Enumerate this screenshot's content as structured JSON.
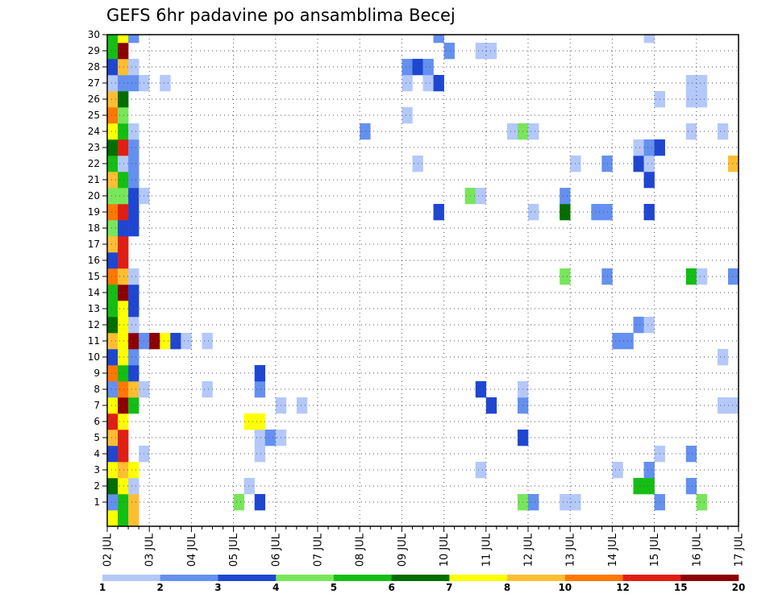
{
  "chart_data": {
    "type": "heatmap",
    "title": "GEFS 6hr padavine po ansamblima Becej",
    "xlabel": "",
    "ylabel": "",
    "x_tick_labels": [
      "02 JUL",
      "03 JUL",
      "04 JUL",
      "05 JUL",
      "06 JUL",
      "07 JUL",
      "08 JUL",
      "09 JUL",
      "10 JUL",
      "11 JUL",
      "12 JUL",
      "13 JUL",
      "14 JUL",
      "15 JUL",
      "16 JUL",
      "17 JUL"
    ],
    "y_tick_labels": [
      "1",
      "2",
      "3",
      "4",
      "5",
      "6",
      "7",
      "8",
      "9",
      "10",
      "11",
      "12",
      "13",
      "14",
      "15",
      "16",
      "17",
      "18",
      "19",
      "20",
      "21",
      "22",
      "23",
      "24",
      "25",
      "26",
      "27",
      "28",
      "29",
      "30"
    ],
    "xlim": [
      0,
      60
    ],
    "ylim": [
      0,
      30
    ],
    "grid": true,
    "colorbar": {
      "levels": [
        "1",
        "2",
        "3",
        "4",
        "5",
        "6",
        "7",
        "8",
        "10",
        "12",
        "15",
        "20"
      ],
      "colors": [
        "#b4c8fa",
        "#6490f0",
        "#1e46d2",
        "#78e65a",
        "#14be14",
        "#006e00",
        "#ffff00",
        "#ffbe32",
        "#ff7800",
        "#e11e14",
        "#8c0000"
      ]
    },
    "cells": [
      [
        0,
        0,
        "#ffff00"
      ],
      [
        1,
        0,
        "#14be14"
      ],
      [
        2,
        0,
        "#ffbe32"
      ],
      [
        0,
        1,
        "#6490f0"
      ],
      [
        1,
        1,
        "#14be14"
      ],
      [
        2,
        1,
        "#ffbe32"
      ],
      [
        12,
        1,
        "#78e65a"
      ],
      [
        14,
        1,
        "#1e46d2"
      ],
      [
        39,
        1,
        "#78e65a"
      ],
      [
        40,
        1,
        "#6490f0"
      ],
      [
        43,
        1,
        "#b4c8fa"
      ],
      [
        44,
        1,
        "#b4c8fa"
      ],
      [
        52,
        1,
        "#6490f0"
      ],
      [
        56,
        1,
        "#78e65a"
      ],
      [
        0,
        2,
        "#006e00"
      ],
      [
        1,
        2,
        "#ffff00"
      ],
      [
        2,
        2,
        "#b4c8fa"
      ],
      [
        13,
        2,
        "#b4c8fa"
      ],
      [
        50,
        2,
        "#14be14"
      ],
      [
        51,
        2,
        "#14be14"
      ],
      [
        55,
        2,
        "#6490f0"
      ],
      [
        0,
        3,
        "#ffff00"
      ],
      [
        1,
        3,
        "#ffbe32"
      ],
      [
        2,
        3,
        "#ffff00"
      ],
      [
        35,
        3,
        "#b4c8fa"
      ],
      [
        48,
        3,
        "#b4c8fa"
      ],
      [
        51,
        3,
        "#6490f0"
      ],
      [
        0,
        4,
        "#1e46d2"
      ],
      [
        1,
        4,
        "#e11e14"
      ],
      [
        3,
        4,
        "#b4c8fa"
      ],
      [
        14,
        4,
        "#b4c8fa"
      ],
      [
        52,
        4,
        "#b4c8fa"
      ],
      [
        55,
        4,
        "#6490f0"
      ],
      [
        0,
        5,
        "#ffbe32"
      ],
      [
        1,
        5,
        "#e11e14"
      ],
      [
        14,
        5,
        "#b4c8fa"
      ],
      [
        15,
        5,
        "#6490f0"
      ],
      [
        16,
        5,
        "#b4c8fa"
      ],
      [
        39,
        5,
        "#1e46d2"
      ],
      [
        0,
        6,
        "#e11e14"
      ],
      [
        1,
        6,
        "#ffff00"
      ],
      [
        13,
        6,
        "#ffff00"
      ],
      [
        14,
        6,
        "#ffff00"
      ],
      [
        0,
        7,
        "#ffff00"
      ],
      [
        1,
        7,
        "#8c0000"
      ],
      [
        2,
        7,
        "#14be14"
      ],
      [
        16,
        7,
        "#b4c8fa"
      ],
      [
        18,
        7,
        "#b4c8fa"
      ],
      [
        36,
        7,
        "#1e46d2"
      ],
      [
        39,
        7,
        "#6490f0"
      ],
      [
        58,
        7,
        "#b4c8fa"
      ],
      [
        59,
        7,
        "#b4c8fa"
      ],
      [
        0,
        8,
        "#6490f0"
      ],
      [
        1,
        8,
        "#ff7800"
      ],
      [
        2,
        8,
        "#ffbe32"
      ],
      [
        3,
        8,
        "#b4c8fa"
      ],
      [
        9,
        8,
        "#b4c8fa"
      ],
      [
        14,
        8,
        "#6490f0"
      ],
      [
        35,
        8,
        "#1e46d2"
      ],
      [
        39,
        8,
        "#b4c8fa"
      ],
      [
        0,
        9,
        "#ff7800"
      ],
      [
        1,
        9,
        "#14be14"
      ],
      [
        2,
        9,
        "#1e46d2"
      ],
      [
        14,
        9,
        "#1e46d2"
      ],
      [
        0,
        10,
        "#1e46d2"
      ],
      [
        1,
        10,
        "#ffff00"
      ],
      [
        2,
        10,
        "#6490f0"
      ],
      [
        58,
        10,
        "#b4c8fa"
      ],
      [
        0,
        11,
        "#ffbe32"
      ],
      [
        1,
        11,
        "#ffff00"
      ],
      [
        2,
        11,
        "#8c0000"
      ],
      [
        3,
        11,
        "#6490f0"
      ],
      [
        4,
        11,
        "#8c0000"
      ],
      [
        5,
        11,
        "#ffff00"
      ],
      [
        6,
        11,
        "#1e46d2"
      ],
      [
        7,
        11,
        "#b4c8fa"
      ],
      [
        9,
        11,
        "#b4c8fa"
      ],
      [
        48,
        11,
        "#6490f0"
      ],
      [
        49,
        11,
        "#6490f0"
      ],
      [
        0,
        12,
        "#006e00"
      ],
      [
        1,
        12,
        "#ffff00"
      ],
      [
        2,
        12,
        "#b4c8fa"
      ],
      [
        50,
        12,
        "#6490f0"
      ],
      [
        51,
        12,
        "#b4c8fa"
      ],
      [
        0,
        13,
        "#14be14"
      ],
      [
        1,
        13,
        "#ffff00"
      ],
      [
        2,
        13,
        "#1e46d2"
      ],
      [
        0,
        14,
        "#14be14"
      ],
      [
        1,
        14,
        "#8c0000"
      ],
      [
        2,
        14,
        "#1e46d2"
      ],
      [
        0,
        15,
        "#ff7800"
      ],
      [
        1,
        15,
        "#ffbe32"
      ],
      [
        2,
        15,
        "#b4c8fa"
      ],
      [
        43,
        15,
        "#78e65a"
      ],
      [
        47,
        15,
        "#6490f0"
      ],
      [
        55,
        15,
        "#14be14"
      ],
      [
        56,
        15,
        "#b4c8fa"
      ],
      [
        59,
        15,
        "#6490f0"
      ],
      [
        0,
        16,
        "#1e46d2"
      ],
      [
        1,
        16,
        "#e11e14"
      ],
      [
        0,
        17,
        "#ffbe32"
      ],
      [
        1,
        17,
        "#e11e14"
      ],
      [
        0,
        18,
        "#78e65a"
      ],
      [
        1,
        18,
        "#1e46d2"
      ],
      [
        2,
        18,
        "#1e46d2"
      ],
      [
        0,
        19,
        "#ff7800"
      ],
      [
        1,
        19,
        "#e11e14"
      ],
      [
        2,
        19,
        "#1e46d2"
      ],
      [
        31,
        19,
        "#1e46d2"
      ],
      [
        40,
        19,
        "#b4c8fa"
      ],
      [
        43,
        19,
        "#006e00"
      ],
      [
        46,
        19,
        "#6490f0"
      ],
      [
        47,
        19,
        "#6490f0"
      ],
      [
        51,
        19,
        "#1e46d2"
      ],
      [
        0,
        20,
        "#78e65a"
      ],
      [
        1,
        20,
        "#78e65a"
      ],
      [
        2,
        20,
        "#1e46d2"
      ],
      [
        3,
        20,
        "#b4c8fa"
      ],
      [
        34,
        20,
        "#78e65a"
      ],
      [
        35,
        20,
        "#b4c8fa"
      ],
      [
        43,
        20,
        "#6490f0"
      ],
      [
        0,
        21,
        "#ffbe32"
      ],
      [
        1,
        21,
        "#14be14"
      ],
      [
        2,
        21,
        "#6490f0"
      ],
      [
        51,
        21,
        "#1e46d2"
      ],
      [
        0,
        22,
        "#14be14"
      ],
      [
        1,
        22,
        "#b4c8fa"
      ],
      [
        2,
        22,
        "#6490f0"
      ],
      [
        29,
        22,
        "#b4c8fa"
      ],
      [
        44,
        22,
        "#b4c8fa"
      ],
      [
        47,
        22,
        "#6490f0"
      ],
      [
        50,
        22,
        "#1e46d2"
      ],
      [
        51,
        22,
        "#b4c8fa"
      ],
      [
        59,
        22,
        "#ffbe32"
      ],
      [
        0,
        23,
        "#006e00"
      ],
      [
        1,
        23,
        "#e11e14"
      ],
      [
        2,
        23,
        "#6490f0"
      ],
      [
        50,
        23,
        "#b4c8fa"
      ],
      [
        51,
        23,
        "#6490f0"
      ],
      [
        52,
        23,
        "#1e46d2"
      ],
      [
        0,
        24,
        "#ffff00"
      ],
      [
        1,
        24,
        "#14be14"
      ],
      [
        2,
        24,
        "#b4c8fa"
      ],
      [
        24,
        24,
        "#6490f0"
      ],
      [
        38,
        24,
        "#b4c8fa"
      ],
      [
        39,
        24,
        "#78e65a"
      ],
      [
        40,
        24,
        "#b4c8fa"
      ],
      [
        55,
        24,
        "#b4c8fa"
      ],
      [
        58,
        24,
        "#b4c8fa"
      ],
      [
        0,
        25,
        "#ff7800"
      ],
      [
        1,
        25,
        "#78e65a"
      ],
      [
        28,
        25,
        "#b4c8fa"
      ],
      [
        0,
        26,
        "#ffbe32"
      ],
      [
        1,
        26,
        "#006e00"
      ],
      [
        52,
        26,
        "#b4c8fa"
      ],
      [
        55,
        26,
        "#b4c8fa"
      ],
      [
        56,
        26,
        "#b4c8fa"
      ],
      [
        0,
        27,
        "#b4c8fa"
      ],
      [
        1,
        27,
        "#6490f0"
      ],
      [
        2,
        27,
        "#6490f0"
      ],
      [
        3,
        27,
        "#b4c8fa"
      ],
      [
        5,
        27,
        "#b4c8fa"
      ],
      [
        28,
        27,
        "#b4c8fa"
      ],
      [
        30,
        27,
        "#b4c8fa"
      ],
      [
        31,
        27,
        "#1e46d2"
      ],
      [
        55,
        27,
        "#b4c8fa"
      ],
      [
        56,
        27,
        "#b4c8fa"
      ],
      [
        0,
        28,
        "#1e46d2"
      ],
      [
        1,
        28,
        "#ffbe32"
      ],
      [
        2,
        28,
        "#b4c8fa"
      ],
      [
        28,
        28,
        "#6490f0"
      ],
      [
        29,
        28,
        "#1e46d2"
      ],
      [
        30,
        28,
        "#6490f0"
      ],
      [
        0,
        29,
        "#14be14"
      ],
      [
        1,
        29,
        "#8c0000"
      ],
      [
        32,
        29,
        "#6490f0"
      ],
      [
        35,
        29,
        "#b4c8fa"
      ],
      [
        36,
        29,
        "#b4c8fa"
      ],
      [
        0,
        30,
        "#14be14"
      ],
      [
        1,
        30,
        "#ffff00"
      ],
      [
        2,
        30,
        "#6490f0"
      ],
      [
        31,
        30,
        "#6490f0"
      ],
      [
        51,
        30,
        "#b4c8fa"
      ]
    ]
  }
}
